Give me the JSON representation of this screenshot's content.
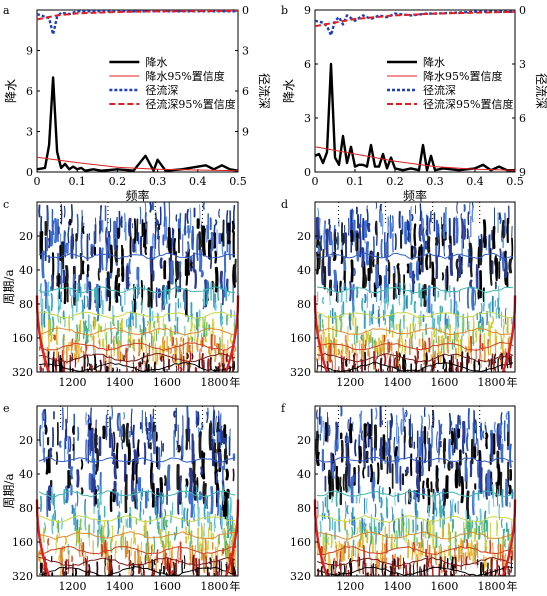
{
  "figure": {
    "panels": [
      "a",
      "b",
      "c",
      "d",
      "e",
      "f"
    ]
  },
  "chart_data": [
    {
      "panel_label": "a",
      "type": "line",
      "xlabel": "频率",
      "ylabel": "降水",
      "ylabel_right": "径流深",
      "xlim": [
        0,
        0.5
      ],
      "ylim": [
        0,
        12
      ],
      "ylim_right": [
        12,
        0
      ],
      "xticks": [
        "0",
        "0.1",
        "0.2",
        "0.3",
        "0.4",
        "0.5"
      ],
      "yticks_left": [
        "0",
        "3",
        "6",
        "9"
      ],
      "yticks_right": [
        "0",
        "3",
        "6",
        "9"
      ],
      "legend": [
        "降水",
        "降水95%置信度",
        "径流深",
        "径流深95%置信度"
      ],
      "series": [
        {
          "name": "降水",
          "color": "#000000",
          "x": [
            0,
            0.02,
            0.03,
            0.04,
            0.05,
            0.06,
            0.07,
            0.08,
            0.09,
            0.1,
            0.11,
            0.12,
            0.14,
            0.16,
            0.2,
            0.24,
            0.27,
            0.29,
            0.3,
            0.32,
            0.36,
            0.42,
            0.44,
            0.46,
            0.48,
            0.5
          ],
          "y": [
            0.2,
            0.3,
            2.0,
            7.0,
            1.5,
            0.3,
            0.6,
            0.2,
            0.4,
            0.2,
            0.3,
            0.1,
            0.2,
            0.1,
            0.2,
            0.1,
            1.2,
            0.1,
            0.9,
            0.1,
            0.2,
            0.5,
            0.2,
            0.5,
            0.2,
            0.1
          ]
        },
        {
          "name": "降水95%置信度",
          "color": "#e02020",
          "x": [
            0,
            0.1,
            0.2,
            0.3,
            0.4,
            0.5
          ],
          "y": [
            1.1,
            0.7,
            0.35,
            0.2,
            0.15,
            0.1
          ]
        },
        {
          "name": "径流深",
          "color": "#1f3fbf",
          "x": [
            0,
            0.03,
            0.04,
            0.05,
            0.06,
            0.08,
            0.1,
            0.15,
            0.2,
            0.3,
            0.4,
            0.5
          ],
          "y": [
            0.3,
            0.6,
            1.8,
            0.5,
            0.2,
            0.3,
            0.1,
            0.1,
            0.1,
            0.1,
            0.1,
            0.1
          ]
        },
        {
          "name": "径流深95%置信度",
          "color": "#e02020",
          "x": [
            0,
            0.05,
            0.1,
            0.2,
            0.3,
            0.4,
            0.5
          ],
          "y": [
            0.7,
            0.4,
            0.25,
            0.15,
            0.1,
            0.08,
            0.06
          ]
        }
      ]
    },
    {
      "panel_label": "b",
      "type": "line",
      "xlabel": "频率",
      "ylabel": "降水",
      "ylabel_right": "径流深",
      "xlim": [
        0,
        0.5
      ],
      "ylim": [
        0,
        9
      ],
      "ylim_right": [
        9,
        0
      ],
      "xticks": [
        "0",
        "0.1",
        "0.2",
        "0.3",
        "0.4",
        "0.5"
      ],
      "yticks_left": [
        "0",
        "3",
        "6",
        "9"
      ],
      "yticks_right": [
        "0",
        "3",
        "6",
        "9"
      ],
      "legend": [
        "降水",
        "降水95%置信度",
        "径流深",
        "径流深95%置信度"
      ],
      "series": [
        {
          "name": "降水",
          "color": "#000000",
          "x": [
            0,
            0.01,
            0.02,
            0.03,
            0.04,
            0.05,
            0.06,
            0.07,
            0.08,
            0.09,
            0.1,
            0.11,
            0.12,
            0.13,
            0.14,
            0.15,
            0.16,
            0.17,
            0.18,
            0.19,
            0.2,
            0.22,
            0.24,
            0.26,
            0.27,
            0.28,
            0.29,
            0.3,
            0.32,
            0.36,
            0.4,
            0.42,
            0.44,
            0.46,
            0.48,
            0.5
          ],
          "y": [
            0.9,
            1.0,
            0.5,
            1.1,
            6.0,
            0.8,
            0.4,
            2.0,
            0.5,
            1.4,
            0.3,
            0.4,
            0.4,
            0.3,
            1.5,
            0.3,
            0.3,
            1.0,
            0.2,
            0.8,
            0.2,
            0.1,
            0.2,
            0.1,
            1.5,
            0.1,
            0.9,
            0.1,
            0.2,
            0.1,
            0.2,
            0.4,
            0.1,
            0.3,
            0.1,
            0.1
          ]
        },
        {
          "name": "降水95%置信度",
          "color": "#e02020",
          "x": [
            0,
            0.1,
            0.2,
            0.3,
            0.4,
            0.5
          ],
          "y": [
            1.4,
            1.0,
            0.6,
            0.3,
            0.15,
            0.1
          ]
        },
        {
          "name": "径流深",
          "color": "#1f3fbf",
          "x": [
            0,
            0.02,
            0.03,
            0.04,
            0.05,
            0.06,
            0.07,
            0.08,
            0.1,
            0.12,
            0.14,
            0.16,
            0.18,
            0.2,
            0.24,
            0.28,
            0.3,
            0.4,
            0.5
          ],
          "y": [
            0.6,
            0.7,
            0.9,
            1.4,
            0.6,
            0.4,
            0.8,
            0.3,
            0.6,
            0.3,
            0.5,
            0.3,
            0.4,
            0.2,
            0.3,
            0.2,
            0.2,
            0.1,
            0.1
          ]
        },
        {
          "name": "径流深95%置信度",
          "color": "#e02020",
          "x": [
            0,
            0.1,
            0.2,
            0.3,
            0.4,
            0.5
          ],
          "y": [
            0.9,
            0.5,
            0.3,
            0.2,
            0.15,
            0.1
          ]
        }
      ]
    },
    {
      "panel_label": "c",
      "type": "heatmap",
      "ylabel": "周期/a",
      "xticks": [
        "1200",
        "1400",
        "1600",
        "1800"
      ],
      "x_unit": "年",
      "xlim": [
        1050,
        1900
      ],
      "yticks": [
        "20",
        "40",
        "80",
        "160",
        "320"
      ],
      "ylim": [
        10,
        320
      ],
      "scale": "log2"
    },
    {
      "panel_label": "d",
      "type": "heatmap",
      "ylabel": "",
      "xticks": [
        "1200",
        "1400",
        "1600",
        "1800"
      ],
      "x_unit": "年",
      "xlim": [
        1050,
        1900
      ],
      "yticks": [
        "20",
        "40",
        "80",
        "160",
        "320"
      ],
      "ylim": [
        10,
        320
      ],
      "scale": "log2"
    },
    {
      "panel_label": "e",
      "type": "heatmap",
      "ylabel": "周期/a",
      "xticks": [
        "1200",
        "1400",
        "1600",
        "1800"
      ],
      "x_unit": "年",
      "xlim": [
        1050,
        1900
      ],
      "yticks": [
        "20",
        "40",
        "80",
        "160",
        "320"
      ],
      "ylim": [
        10,
        320
      ],
      "scale": "log2"
    },
    {
      "panel_label": "f",
      "type": "heatmap",
      "ylabel": "",
      "xticks": [
        "1200",
        "1400",
        "1600",
        "1800"
      ],
      "x_unit": "年",
      "xlim": [
        1050,
        1900
      ],
      "yticks": [
        "20",
        "40",
        "80",
        "160",
        "320"
      ],
      "ylim": [
        10,
        320
      ],
      "scale": "log2"
    }
  ]
}
